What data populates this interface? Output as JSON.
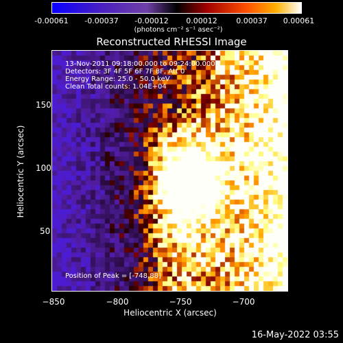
{
  "colorbar": {
    "ticks": [
      "-0.00061",
      "-0.00037",
      "-0.00012",
      "0.00012",
      "0.00037",
      "0.00061"
    ],
    "units": "(photons cm⁻² s⁻¹ asec⁻²)"
  },
  "title": "Reconstructed RHESSI Image",
  "info": {
    "time": "13-Nov-2011 09:18:00.000 to 09:24:00.000",
    "detectors": "Detectors: 3F 4F 5F 6F 7F 8F, Att 0",
    "energy": "Energy Range: 25.0 - 50.0 keV",
    "clean": "Clean     Total counts: 1.04E+04"
  },
  "peak": "Position of Peak = [-748,88]",
  "xaxis": {
    "label": "Heliocentric X (arcsec)",
    "ticks": [
      "−850",
      "−800",
      "−750",
      "−700"
    ]
  },
  "yaxis": {
    "label": "Heliocentric Y (arcsec)",
    "ticks": [
      "150",
      "100",
      "50"
    ]
  },
  "footer": "16-May-2022 03:55",
  "colors": {
    "negative": "#1a10ff",
    "mid": "#5a2aa0",
    "zero": "#000000",
    "hot": "#ff4000",
    "peak": "#ffffff"
  }
}
